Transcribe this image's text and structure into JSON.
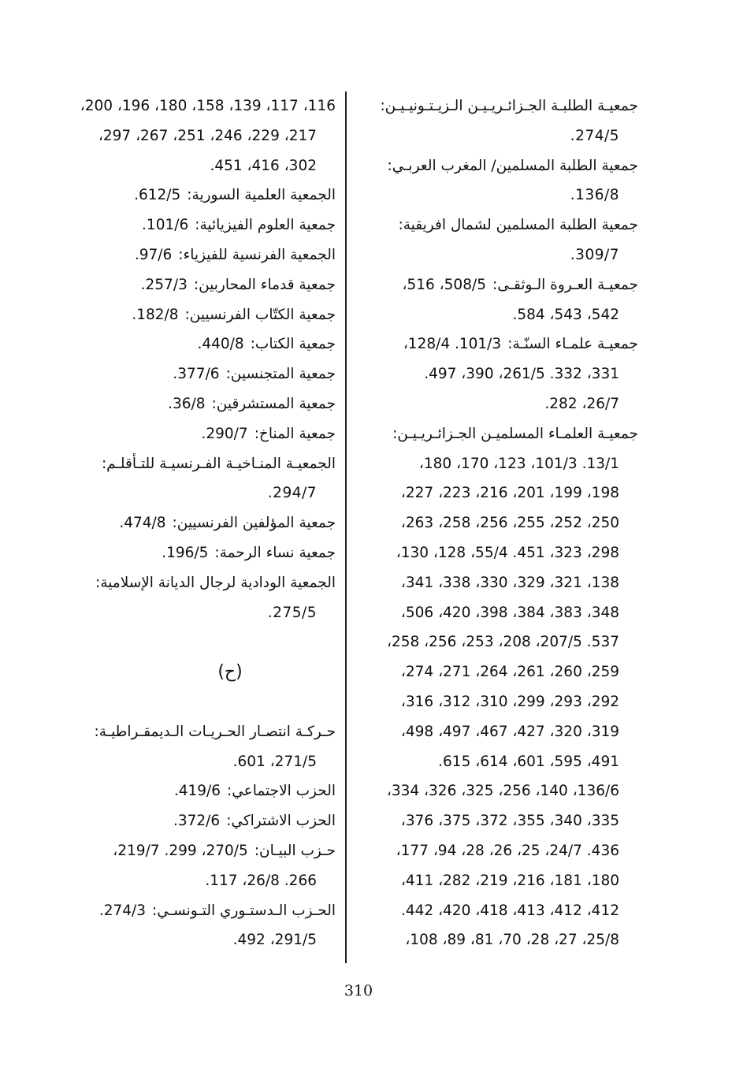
{
  "right_column": [
    {
      "label": "جمعيـة الطلبـة الجـزائـريـيـن الـزيـتـونيـيـن:",
      "refs": ""
    },
    {
      "label": "",
      "refs": ".274/5",
      "cont": true
    },
    {
      "label": "جمعية الطلبة المسلمين/ المغرب العربـي:",
      "refs": ""
    },
    {
      "label": "",
      "refs": ".136/8",
      "cont": true
    },
    {
      "label": "جمعية الطلبة المسلمين لشمال افريقية:",
      "refs": ""
    },
    {
      "label": "",
      "refs": ".309/7",
      "cont": true
    },
    {
      "label": "جمعيـة العـروة الـوثقـى:",
      "refs": "،516 ،508/5"
    },
    {
      "label": "",
      "refs": ".584 ،543 ،542",
      "cont": true
    },
    {
      "label": "جمعيـة علمـاء السنّـة:",
      "refs": "،128/4 .101/3"
    },
    {
      "label": "",
      "refs": ".497 ،390 ،261/5 .332 ،331",
      "cont": true
    },
    {
      "label": "",
      "refs": ".282 ،26/7",
      "cont": true
    },
    {
      "label": "جمعيـة العلمـاء المسلميـن الجـزائـريـيـن:",
      "refs": ""
    },
    {
      "label": "",
      "refs": "،180 ،170 ،123 ،101/3 .13/1",
      "cont": true
    },
    {
      "label": "",
      "refs": "،227 ،223 ،216 ،201 ،199 ،198",
      "cont": true
    },
    {
      "label": "",
      "refs": "،263 ،258 ،256 ،255 ،252 ،250",
      "cont": true
    },
    {
      "label": "",
      "refs": "،130 ،128 ،55/4 .451 ،323 ،298",
      "cont": true
    },
    {
      "label": "",
      "refs": "،341 ،338 ،330 ،329 ،321 ،138",
      "cont": true
    },
    {
      "label": "",
      "refs": "،506 ،420 ،398 ،384 ،383 ،348",
      "cont": true
    },
    {
      "label": "",
      "refs": "،258 ،256 ،253 ،208 ،207/5 .537",
      "cont": true
    },
    {
      "label": "",
      "refs": "،274 ،271 ،264 ،261 ،260 ،259",
      "cont": true
    },
    {
      "label": "",
      "refs": "،316 ،312 ،310 ،299 ،293 ،292",
      "cont": true
    },
    {
      "label": "",
      "refs": "،498 ،497 ،467 ،427 ،320 ،319",
      "cont": true
    },
    {
      "label": "",
      "refs": ".615  ،614  ،601  ،595  ،491",
      "cont": true
    },
    {
      "label": "",
      "refs": "،334 ،326 ،325 ،256 ،140 ،136/6",
      "cont": true
    },
    {
      "label": "",
      "refs": "،376 ،375 ،372 ،355 ،340 ،335",
      "cont": true
    },
    {
      "label": "",
      "refs": "،177 ،94 ،28 ،26 ،25 ،24/7 .436",
      "cont": true
    },
    {
      "label": "",
      "refs": "،411 ،282 ،219 ،216 ،181 ،180",
      "cont": true
    },
    {
      "label": "",
      "refs": ".442 ،420 ،418 ،413 ،412 ،412",
      "cont": true
    },
    {
      "label": "",
      "refs": "،108 ،89 ،81 ،70 ،28 ،27 ،25/8",
      "cont": true
    }
  ],
  "left_column": [
    {
      "label": "",
      "refs": "،200 ،196 ،180 ،158 ،139 ،117 ،116"
    },
    {
      "label": "",
      "refs": "،297 ،267 ،251 ،246 ،229 ،217",
      "cont": true
    },
    {
      "label": "",
      "refs": ".451 ،416 ،302",
      "cont": true
    },
    {
      "label": "الجمعية العلمية السورية:",
      "refs": ".612/5"
    },
    {
      "label": "جمعية العلوم الفيزيائية:",
      "refs": ".101/6"
    },
    {
      "label": "الجمعية الفرنسية للفيزياء:",
      "refs": ".97/6"
    },
    {
      "label": "جمعية قدماء المحاربين:",
      "refs": ".257/3"
    },
    {
      "label": "جمعية الكتّاب الفرنسيين:",
      "refs": ".182/8"
    },
    {
      "label": "جمعية الكتاب:",
      "refs": ".440/8"
    },
    {
      "label": "جمعية المتجنسين:",
      "refs": ".377/6"
    },
    {
      "label": "جمعية المستشرقين:",
      "refs": ".36/8"
    },
    {
      "label": "جمعية المناخ:",
      "refs": ".290/7"
    },
    {
      "label": "الجمعيـة المنـاخيـة الفـرنسيـة للتـأقلـم:",
      "refs": ""
    },
    {
      "label": "",
      "refs": ".294/7",
      "cont": true
    },
    {
      "label": "جمعية المؤلفين الفرنسيين:",
      "refs": ".474/8"
    },
    {
      "label": "جمعية نساء الرحمة:",
      "refs": ".196/5"
    },
    {
      "label": "الجمعية الودادية لرجال الديانة الإسلامية:",
      "refs": ""
    },
    {
      "label": "",
      "refs": ".275/5",
      "cont": true
    },
    {
      "blank": true
    },
    {
      "heading": "(ح)"
    },
    {
      "blank": true
    },
    {
      "label": "حـركـة انتصـار الحـريـات الـديمقـراطيـة:",
      "refs": ""
    },
    {
      "label": "",
      "refs": ".601 ،271/5",
      "cont": true
    },
    {
      "label": "الحزب الاجتماعي:",
      "refs": ".419/6"
    },
    {
      "label": "الحزب الاشتراكي:",
      "refs": ".372/6"
    },
    {
      "label": "حـزب البيـان:",
      "refs": "،219/7 .299 ،270/5"
    },
    {
      "label": "",
      "refs": ".117 ،26/8 .266",
      "cont": true
    },
    {
      "label": "الحـزب الـدستـوري التـونسـي:",
      "refs": ".274/3"
    },
    {
      "label": "",
      "refs": ".492 ،291/5",
      "cont": true
    }
  ],
  "page_number": "310"
}
